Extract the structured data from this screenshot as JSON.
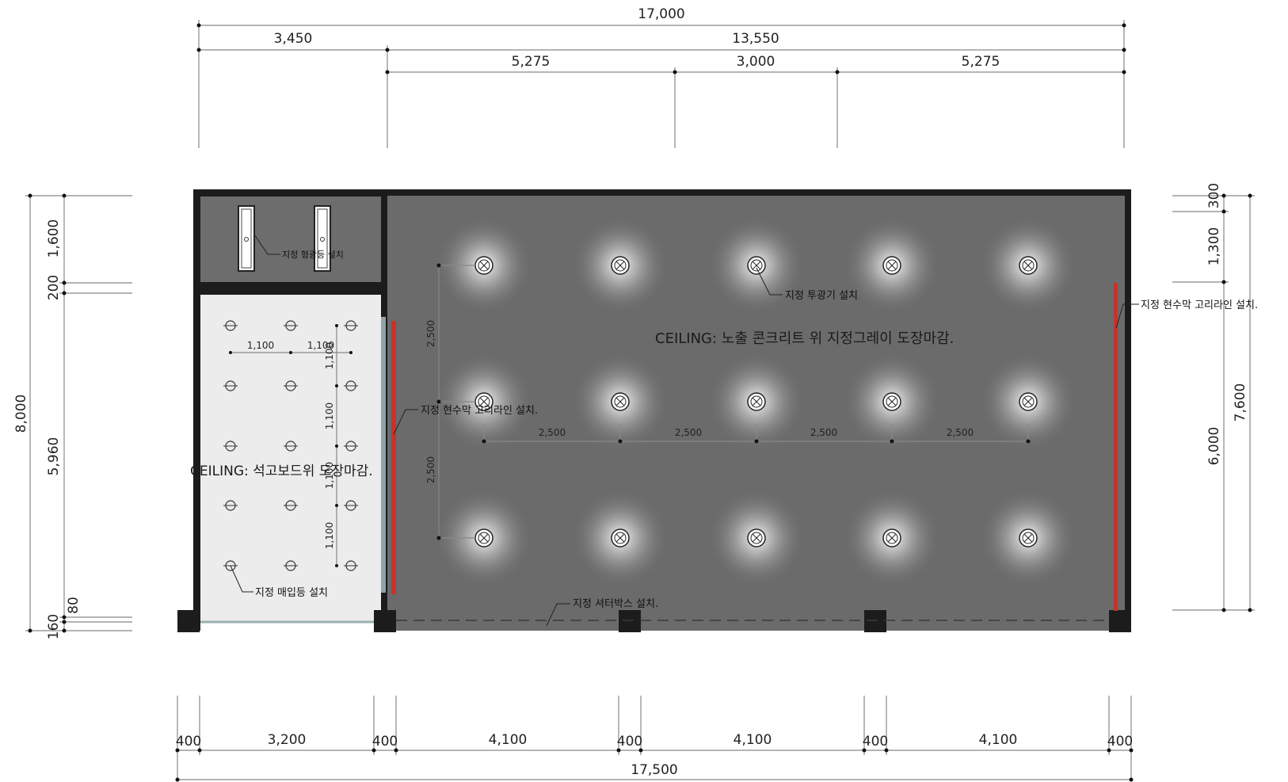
{
  "top_dimensions": {
    "overall": "17,000",
    "left_bay": "3,450",
    "right_span": "13,550",
    "bay_1": "5,275",
    "bay_2": "3,000",
    "bay_3": "5,275"
  },
  "bottom_dimensions": {
    "segments": [
      "400",
      "3,200",
      "400",
      "4,100",
      "400",
      "4,100",
      "400",
      "4,100",
      "400"
    ],
    "overall": "17,500"
  },
  "left_dimensions": {
    "overall": "8,000",
    "segments": [
      "1,600",
      "200",
      "5,960",
      "80",
      "160"
    ]
  },
  "right_dimensions": {
    "overall": "7,600",
    "segments": [
      "300",
      "1,300",
      "6,000"
    ]
  },
  "interior_dimensions": {
    "small_spacing": [
      "1,100",
      "1,100"
    ],
    "small_vertical": [
      "1,100",
      "1,100",
      "1,100",
      "1,100"
    ],
    "light_vertical": [
      "2,500",
      "2,500"
    ],
    "light_horizontal": [
      "2,500",
      "2,500",
      "2,500",
      "2,500"
    ]
  },
  "ceiling_labels": {
    "main": "CEILING: 노출 콘크리트 위 지정그레이 도장마감.",
    "small": "CEILING: 석고보드위 도장마감."
  },
  "notes": {
    "fluorescent": "지정 형광등 설치",
    "spotlight": "지정 투광기 설치",
    "curtain_left": "지정 현수막 고리라인 설치.",
    "curtain_right": "지정 현수막 고리라인 설치.",
    "downlight": "지정 매입등 설치",
    "shutter_box": "지정 셔터박스 설치."
  },
  "colors": {
    "wall": "#1c1c1c",
    "main_floor": "#6b6b6b",
    "small_room": "#ececec",
    "accent_red": "#c8322c"
  }
}
